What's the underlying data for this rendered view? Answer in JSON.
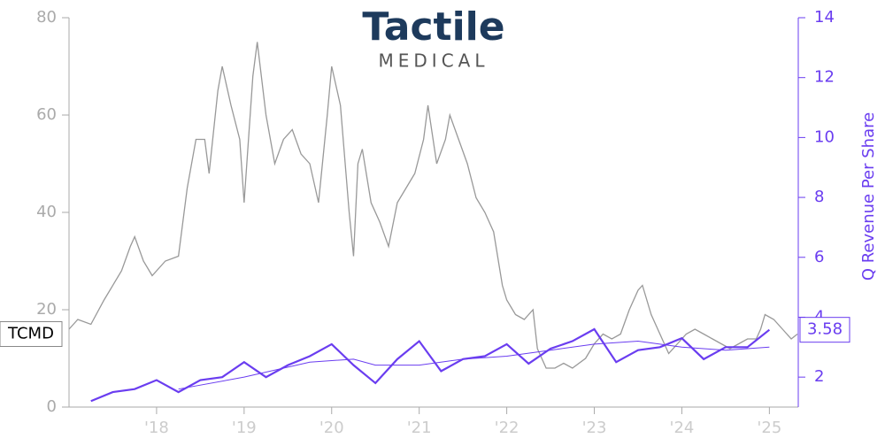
{
  "chart_data": {
    "type": "line",
    "logo": {
      "name": "Tactile",
      "subtitle": "MEDICAL"
    },
    "y2_label": "Q Revenue Per Share",
    "xlim": [
      2017.0,
      2025.33
    ],
    "xticks": [
      {
        "value": 2018,
        "label": "'18"
      },
      {
        "value": 2019,
        "label": "'19"
      },
      {
        "value": 2020,
        "label": "'20"
      },
      {
        "value": 2021,
        "label": "'21"
      },
      {
        "value": 2022,
        "label": "'22"
      },
      {
        "value": 2023,
        "label": "'23"
      },
      {
        "value": 2024,
        "label": "'24"
      },
      {
        "value": 2025,
        "label": "'25"
      }
    ],
    "ylim": [
      0,
      80
    ],
    "yticks": [
      0,
      20,
      40,
      60,
      80
    ],
    "y2lim": [
      1,
      14
    ],
    "y2ticks": [
      2,
      4,
      6,
      8,
      10,
      12,
      14
    ],
    "series": [
      {
        "label": "TCMD",
        "color": "#999999",
        "axis": "y",
        "x": [
          2017.0,
          2017.1,
          2017.25,
          2017.4,
          2017.6,
          2017.7,
          2017.75,
          2017.85,
          2017.95,
          2018.1,
          2018.25,
          2018.35,
          2018.45,
          2018.55,
          2018.6,
          2018.7,
          2018.75,
          2018.85,
          2018.95,
          2019.0,
          2019.1,
          2019.15,
          2019.25,
          2019.35,
          2019.45,
          2019.55,
          2019.65,
          2019.75,
          2019.85,
          2019.95,
          2020.0,
          2020.1,
          2020.2,
          2020.25,
          2020.3,
          2020.35,
          2020.45,
          2020.55,
          2020.65,
          2020.75,
          2020.85,
          2020.95,
          2021.05,
          2021.1,
          2021.2,
          2021.3,
          2021.35,
          2021.45,
          2021.55,
          2021.65,
          2021.75,
          2021.85,
          2021.95,
          2022.0,
          2022.1,
          2022.2,
          2022.3,
          2022.35,
          2022.45,
          2022.55,
          2022.65,
          2022.75,
          2022.9,
          2023.0,
          2023.1,
          2023.2,
          2023.3,
          2023.4,
          2023.5,
          2023.55,
          2023.65,
          2023.75,
          2023.85,
          2023.95,
          2024.05,
          2024.15,
          2024.25,
          2024.35,
          2024.45,
          2024.55,
          2024.65,
          2024.75,
          2024.85,
          2024.9,
          2024.95,
          2025.05,
          2025.15,
          2025.25,
          2025.32
        ],
        "values": [
          16,
          18,
          17,
          22,
          28,
          33,
          35,
          30,
          27,
          30,
          31,
          45,
          55,
          55,
          48,
          65,
          70,
          62,
          55,
          42,
          68,
          75,
          60,
          50,
          55,
          57,
          52,
          50,
          42,
          60,
          70,
          62,
          40,
          31,
          50,
          53,
          42,
          38,
          33,
          42,
          45,
          48,
          55,
          62,
          50,
          55,
          60,
          55,
          50,
          43,
          40,
          36,
          25,
          22,
          19,
          18,
          20,
          12,
          8,
          8,
          9,
          8,
          10,
          13,
          15,
          14,
          15,
          20,
          24,
          25,
          19,
          15,
          11,
          13,
          15,
          16,
          15,
          14,
          13,
          12,
          13,
          14,
          14,
          16,
          19,
          18,
          16,
          14,
          15
        ]
      },
      {
        "color": "#6a3df0",
        "axis": "y2",
        "width": 2.2,
        "x": [
          2017.25,
          2017.5,
          2017.75,
          2018.0,
          2018.25,
          2018.5,
          2018.75,
          2019.0,
          2019.25,
          2019.5,
          2019.75,
          2020.0,
          2020.25,
          2020.5,
          2020.75,
          2021.0,
          2021.25,
          2021.5,
          2021.75,
          2022.0,
          2022.25,
          2022.5,
          2022.75,
          2023.0,
          2023.25,
          2023.5,
          2023.75,
          2024.0,
          2024.25,
          2024.5,
          2024.75,
          2025.0
        ],
        "values": [
          1.2,
          1.5,
          1.6,
          1.9,
          1.5,
          1.9,
          2.0,
          2.5,
          2.0,
          2.4,
          2.7,
          3.1,
          2.4,
          1.8,
          2.6,
          3.2,
          2.2,
          2.6,
          2.7,
          3.1,
          2.45,
          2.95,
          3.2,
          3.6,
          2.5,
          2.9,
          3.0,
          3.3,
          2.6,
          3.0,
          3.0,
          3.58
        ],
        "value_labels": [
          null,
          null,
          null,
          null,
          null,
          null,
          null,
          null,
          null,
          null,
          null,
          null,
          null,
          null,
          null,
          null,
          null,
          null,
          null,
          null,
          null,
          null,
          null,
          null,
          null,
          null,
          null,
          null,
          null,
          null,
          null,
          "3.58"
        ]
      },
      {
        "color": "#6a3df0",
        "axis": "y2",
        "width": 1,
        "x": [
          2018.25,
          2019.0,
          2019.75,
          2020.25,
          2020.5,
          2021.0,
          2021.5,
          2022.0,
          2022.5,
          2023.0,
          2023.5,
          2024.0,
          2024.5,
          2025.0
        ],
        "values": [
          1.6,
          2.0,
          2.5,
          2.6,
          2.4,
          2.4,
          2.6,
          2.7,
          2.9,
          3.1,
          3.2,
          3.0,
          2.9,
          3.0
        ]
      }
    ]
  }
}
